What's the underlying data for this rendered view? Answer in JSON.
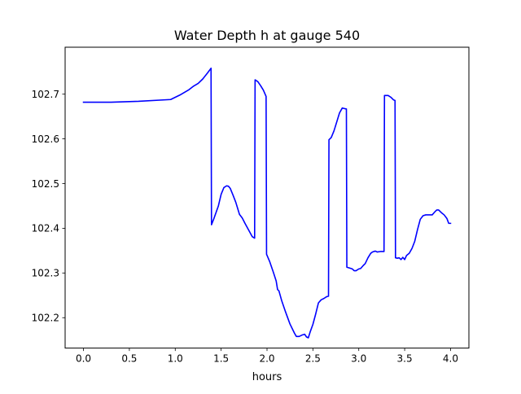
{
  "chart_data": {
    "type": "line",
    "title": "Water Depth h at gauge 540",
    "xlabel": "hours",
    "ylabel": "",
    "xlim": [
      -0.2,
      4.2
    ],
    "ylim": [
      102.132,
      102.805
    ],
    "xticks": [
      0.0,
      0.5,
      1.0,
      1.5,
      2.0,
      2.5,
      3.0,
      3.5,
      4.0
    ],
    "xtick_labels": [
      "0.0",
      "0.5",
      "1.0",
      "1.5",
      "2.0",
      "2.5",
      "3.0",
      "3.5",
      "4.0"
    ],
    "yticks": [
      102.2,
      102.3,
      102.4,
      102.5,
      102.6,
      102.7
    ],
    "ytick_labels": [
      "102.2",
      "102.3",
      "102.4",
      "102.5",
      "102.6",
      "102.7"
    ],
    "grid": false,
    "legend": "none",
    "series": [
      {
        "color": "#0000ff",
        "x": [
          0.0,
          0.3,
          0.6,
          0.95,
          1.05,
          1.15,
          1.2,
          1.25,
          1.3,
          1.35,
          1.39,
          1.395,
          1.42,
          1.47,
          1.5,
          1.53,
          1.56,
          1.58,
          1.6,
          1.63,
          1.66,
          1.7,
          1.73,
          1.76,
          1.8,
          1.84,
          1.865,
          1.87,
          1.9,
          1.93,
          1.96,
          1.99,
          1.995,
          2.03,
          2.07,
          2.1,
          2.115,
          2.13,
          2.16,
          2.2,
          2.25,
          2.3,
          2.32,
          2.35,
          2.38,
          2.41,
          2.43,
          2.45,
          2.47,
          2.5,
          2.53,
          2.56,
          2.59,
          2.62,
          2.65,
          2.67,
          2.675,
          2.7,
          2.73,
          2.76,
          2.79,
          2.82,
          2.84,
          2.86,
          2.865,
          2.87,
          2.9,
          2.93,
          2.95,
          2.97,
          3.0,
          3.02,
          3.05,
          3.07,
          3.1,
          3.13,
          3.15,
          3.18,
          3.2,
          3.235,
          3.26,
          3.275,
          3.28,
          3.3,
          3.32,
          3.35,
          3.38,
          3.395,
          3.4,
          3.42,
          3.44,
          3.46,
          3.48,
          3.5,
          3.52,
          3.55,
          3.58,
          3.61,
          3.64,
          3.67,
          3.7,
          3.73,
          3.76,
          3.8,
          3.83,
          3.85,
          3.87,
          3.9,
          3.93,
          3.96,
          3.98,
          4.0
        ],
        "y": [
          102.682,
          102.682,
          102.684,
          102.688,
          102.698,
          102.71,
          102.718,
          102.724,
          102.734,
          102.747,
          102.758,
          102.408,
          102.421,
          102.45,
          102.476,
          102.491,
          102.495,
          102.494,
          102.489,
          102.474,
          102.458,
          102.431,
          102.423,
          102.411,
          102.396,
          102.381,
          102.378,
          102.732,
          102.728,
          102.719,
          102.709,
          102.695,
          102.342,
          102.325,
          102.301,
          102.282,
          102.263,
          102.26,
          102.238,
          102.214,
          102.186,
          102.165,
          102.158,
          102.158,
          102.161,
          102.163,
          102.157,
          102.155,
          102.168,
          102.185,
          102.208,
          102.233,
          102.24,
          102.243,
          102.247,
          102.248,
          102.598,
          102.603,
          102.618,
          102.638,
          102.658,
          102.669,
          102.668,
          102.667,
          102.667,
          102.313,
          102.311,
          102.309,
          102.305,
          102.305,
          102.309,
          102.31,
          102.317,
          102.321,
          102.334,
          102.344,
          102.347,
          102.349,
          102.347,
          102.348,
          102.348,
          102.348,
          102.697,
          102.697,
          102.697,
          102.693,
          102.687,
          102.686,
          102.334,
          102.333,
          102.334,
          102.33,
          102.335,
          102.33,
          102.339,
          102.344,
          102.355,
          102.371,
          102.397,
          102.42,
          102.428,
          102.43,
          102.43,
          102.43,
          102.437,
          102.441,
          102.441,
          102.435,
          102.43,
          102.422,
          102.411,
          102.411
        ]
      }
    ]
  }
}
